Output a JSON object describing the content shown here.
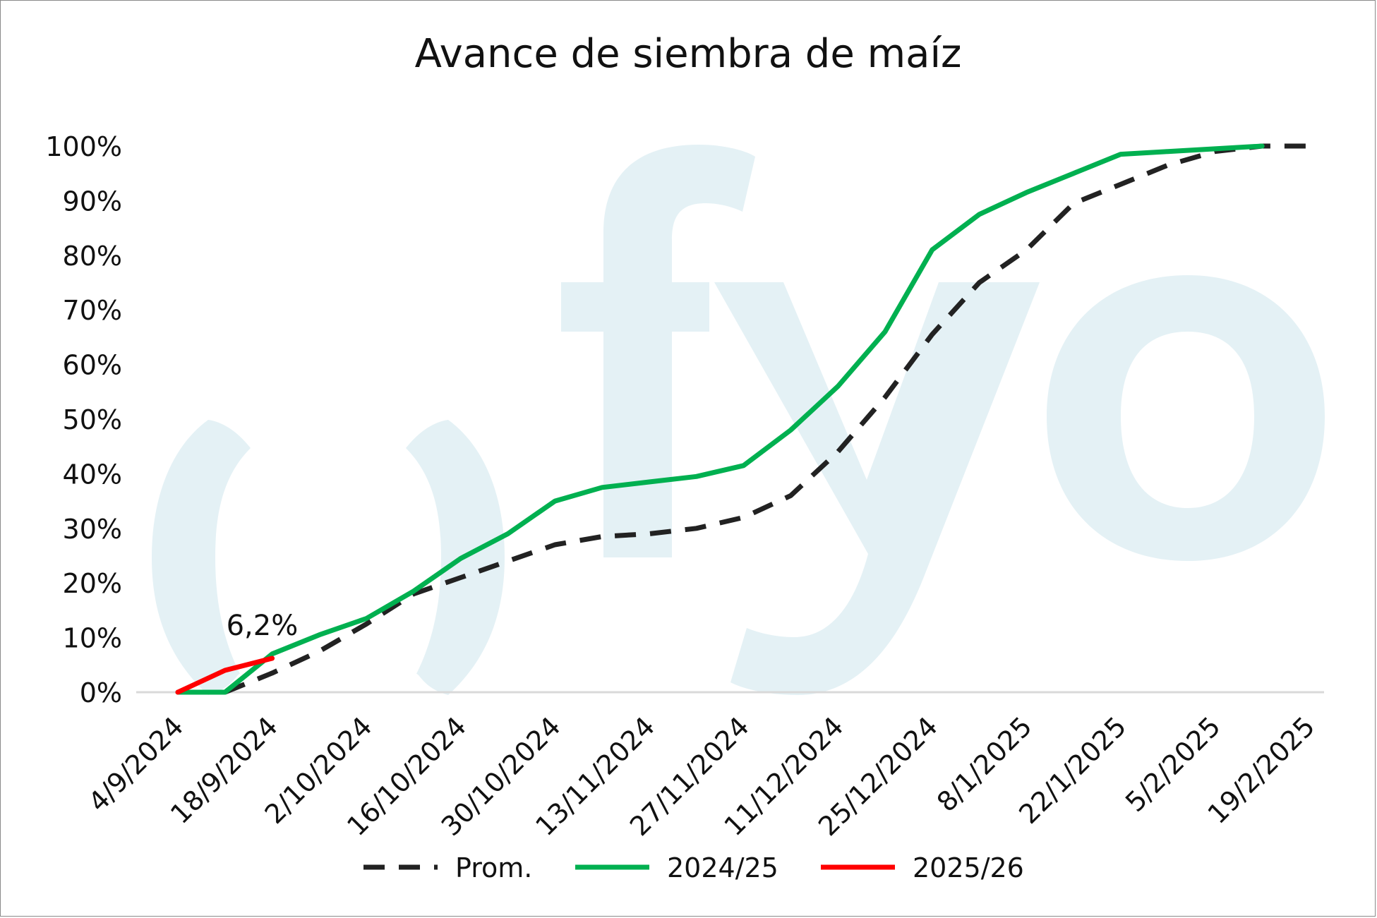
{
  "chart_data": {
    "type": "line",
    "title": "Avance de siembra de maíz",
    "xlabel": "",
    "ylabel": "",
    "x_ticks": [
      "4/9/2024",
      "18/9/2024",
      "2/10/2024",
      "16/10/2024",
      "30/10/2024",
      "13/11/2024",
      "27/11/2024",
      "11/12/2024",
      "25/12/2024",
      "8/1/2025",
      "22/1/2025",
      "5/2/2025",
      "19/2/2025"
    ],
    "ylim": [
      0,
      100
    ],
    "y_ticks": [
      0,
      10,
      20,
      30,
      40,
      50,
      60,
      70,
      80,
      90,
      100
    ],
    "y_tick_suffix": "%",
    "grid": false,
    "legend_position": "bottom",
    "watermark": "fyo",
    "series": [
      {
        "name": "Prom.",
        "color": "#222222",
        "style": "dashed",
        "points": [
          [
            "11/9/2024",
            0
          ],
          [
            "18/9/2024",
            3.5
          ],
          [
            "25/9/2024",
            7.5
          ],
          [
            "2/10/2024",
            12.5
          ],
          [
            "9/10/2024",
            18
          ],
          [
            "16/10/2024",
            21
          ],
          [
            "23/10/2024",
            24
          ],
          [
            "30/10/2024",
            27
          ],
          [
            "6/11/2024",
            28.5
          ],
          [
            "13/11/2024",
            29
          ],
          [
            "20/11/2024",
            30
          ],
          [
            "27/11/2024",
            32
          ],
          [
            "4/12/2024",
            36
          ],
          [
            "11/12/2024",
            44
          ],
          [
            "18/12/2024",
            54
          ],
          [
            "25/12/2024",
            65.5
          ],
          [
            "1/1/2025",
            75
          ],
          [
            "8/1/2025",
            81
          ],
          [
            "15/1/2025",
            89.5
          ],
          [
            "22/1/2025",
            93
          ],
          [
            "29/1/2025",
            96.5
          ],
          [
            "5/2/2025",
            99
          ],
          [
            "12/2/2025",
            100
          ],
          [
            "19/2/2025",
            100
          ]
        ]
      },
      {
        "name": "2024/25",
        "color": "#00b050",
        "style": "solid",
        "points": [
          [
            "4/9/2024",
            0
          ],
          [
            "11/9/2024",
            0
          ],
          [
            "18/9/2024",
            7
          ],
          [
            "25/9/2024",
            10.5
          ],
          [
            "2/10/2024",
            13.5
          ],
          [
            "9/10/2024",
            18.5
          ],
          [
            "16/10/2024",
            24.5
          ],
          [
            "23/10/2024",
            29
          ],
          [
            "30/10/2024",
            35
          ],
          [
            "6/11/2024",
            37.5
          ],
          [
            "13/11/2024",
            38.5
          ],
          [
            "20/11/2024",
            39.5
          ],
          [
            "27/11/2024",
            41.5
          ],
          [
            "4/12/2024",
            48
          ],
          [
            "11/12/2024",
            56
          ],
          [
            "18/12/2024",
            66
          ],
          [
            "25/12/2024",
            81
          ],
          [
            "1/1/2025",
            87.5
          ],
          [
            "8/1/2025",
            91.5
          ],
          [
            "15/1/2025",
            95
          ],
          [
            "22/1/2025",
            98.5
          ],
          [
            "29/1/2025",
            99
          ],
          [
            "5/2/2025",
            99.5
          ],
          [
            "12/2/2025",
            100
          ]
        ]
      },
      {
        "name": "2025/26",
        "color": "#ff0000",
        "style": "solid",
        "points": [
          [
            "4/9/2024",
            0
          ],
          [
            "11/9/2024",
            4
          ],
          [
            "18/9/2024",
            6.2
          ]
        ]
      }
    ],
    "annotations": [
      {
        "text": "6,2%",
        "x": "18/9/2024",
        "y": 6.2
      }
    ]
  }
}
